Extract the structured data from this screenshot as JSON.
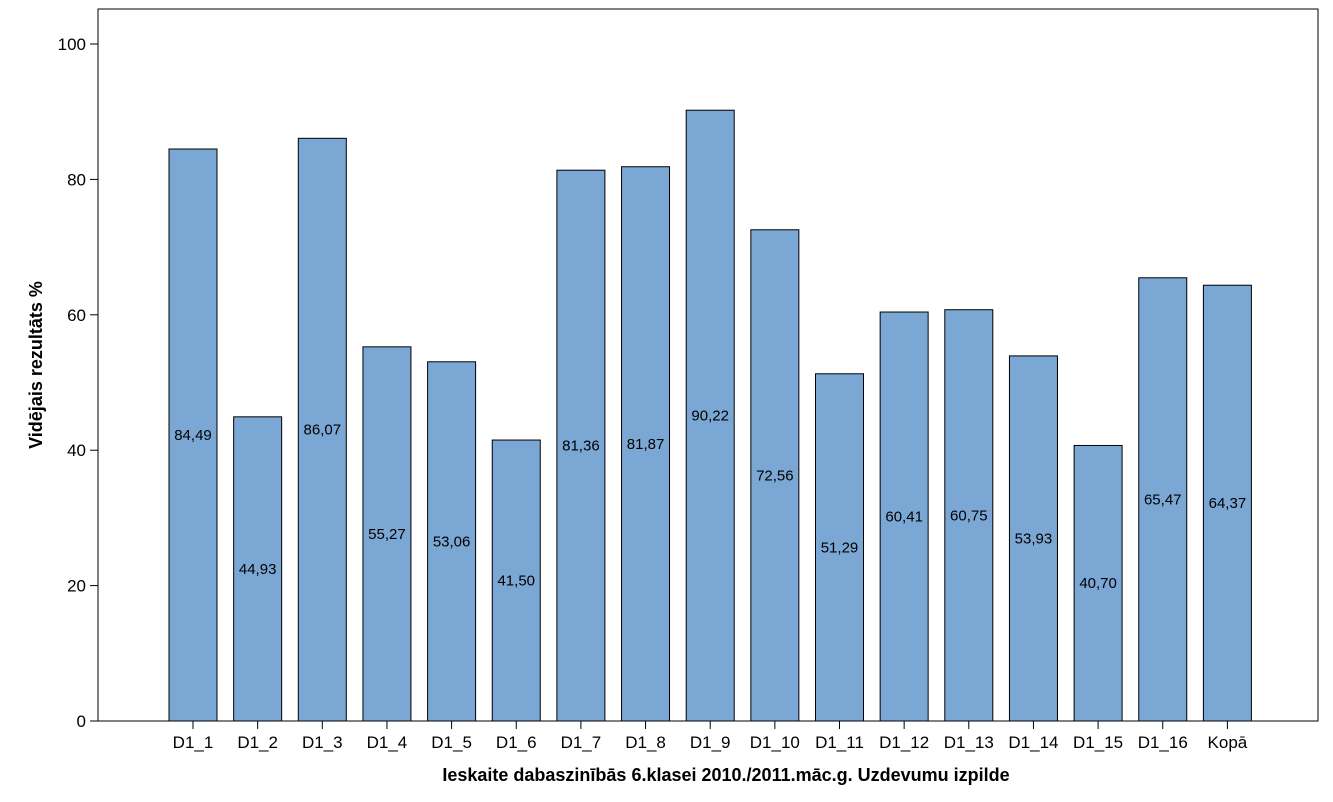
{
  "chart_data": {
    "type": "bar",
    "title": "",
    "xlabel": "Ieskaite dabaszinībās 6.klasei 2010./2011.māc.g. Uzdevumu izpilde",
    "ylabel": "Vidējais rezultāts %",
    "ylim": [
      0,
      100
    ],
    "yticks": [
      0,
      20,
      40,
      60,
      80,
      100
    ],
    "grid": false,
    "bar_color": "#7BA7D4",
    "categories": [
      "D1_1",
      "D1_2",
      "D1_3",
      "D1_4",
      "D1_5",
      "D1_6",
      "D1_7",
      "D1_8",
      "D1_9",
      "D1_10",
      "D1_11",
      "D1_12",
      "D1_13",
      "D1_14",
      "D1_15",
      "D1_16",
      "Kopā"
    ],
    "values": [
      84.49,
      44.93,
      86.07,
      55.27,
      53.06,
      41.5,
      81.36,
      81.87,
      90.22,
      72.56,
      51.29,
      60.41,
      60.75,
      53.93,
      40.7,
      65.47,
      64.37
    ],
    "value_labels": [
      "84,49",
      "44,93",
      "86,07",
      "55,27",
      "53,06",
      "41,50",
      "81,36",
      "81,87",
      "90,22",
      "72,56",
      "51,29",
      "60,41",
      "60,75",
      "53,93",
      "40,70",
      "65,47",
      "64,37"
    ]
  }
}
